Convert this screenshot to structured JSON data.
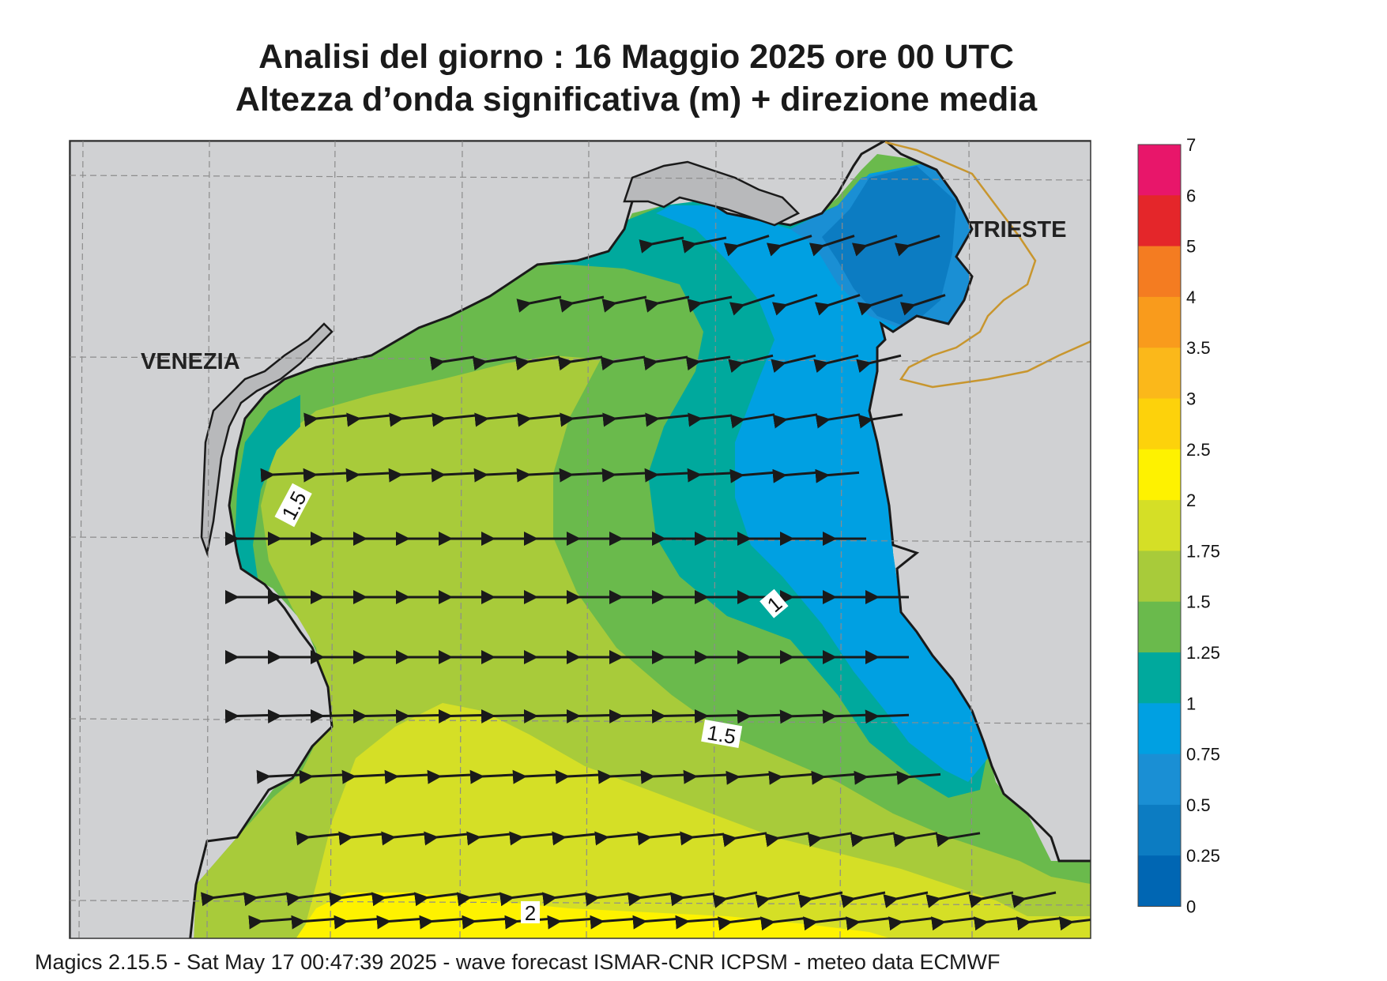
{
  "title": {
    "line1": "Analisi del giorno :  16   Maggio  2025   ore 00 UTC",
    "line2": "Altezza d’onda significativa (m) + direzione media"
  },
  "footer": "Magics 2.15.5 - Sat May 17 00:47:39 2025 - wave forecast  ISMAR-CNR  ICPSM - meteo data   ECMWF",
  "cities": [
    {
      "name": "VENEZIA"
    },
    {
      "name": "TRIESTE"
    }
  ],
  "contour_labels": [
    "1.5",
    "1",
    "1.5",
    "2"
  ],
  "legend": {
    "ticks": [
      "7",
      "6",
      "5",
      "4",
      "3.5",
      "3",
      "2.5",
      "2",
      "1.75",
      "1.5",
      "1.25",
      "1",
      "0.75",
      "0.5",
      "0.25",
      "0"
    ],
    "colors": [
      "#e8166a",
      "#e4262a",
      "#f47c21",
      "#f99b1c",
      "#fbb81a",
      "#fdd20b",
      "#fef200",
      "#d5df26",
      "#a8cb3a",
      "#6aba4c",
      "#00a99d",
      "#00a0e2",
      "#1a8fd4",
      "#0c7cc2",
      "#0066b3"
    ]
  },
  "map_colors": {
    "land": "#d0d1d3",
    "coast": "#1a1a1a",
    "border": "#c8962e",
    "grid": "#8c8c8c"
  }
}
